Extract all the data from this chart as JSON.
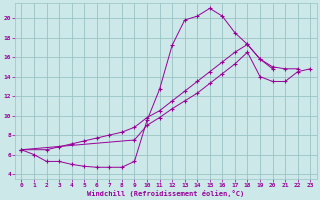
{
  "xlabel": "Windchill (Refroidissement éolien,°C)",
  "bg_color": "#cce8e8",
  "grid_color": "#99c4c4",
  "line_color": "#990099",
  "xlim": [
    -0.5,
    23.5
  ],
  "ylim": [
    3.5,
    21.5
  ],
  "xticks": [
    0,
    1,
    2,
    3,
    4,
    5,
    6,
    7,
    8,
    9,
    10,
    11,
    12,
    13,
    14,
    15,
    16,
    17,
    18,
    19,
    20,
    21,
    22,
    23
  ],
  "yticks": [
    4,
    6,
    8,
    10,
    12,
    14,
    16,
    18,
    20
  ],
  "curve1_x": [
    0,
    1,
    2,
    3,
    4,
    5,
    6,
    7,
    8,
    9,
    10,
    11,
    12,
    13,
    14,
    15,
    16,
    17,
    18,
    19,
    20,
    21,
    22
  ],
  "curve1_y": [
    6.5,
    6.0,
    5.3,
    5.3,
    5.0,
    4.8,
    4.7,
    4.7,
    4.7,
    5.3,
    9.5,
    12.7,
    17.2,
    19.8,
    20.2,
    21.0,
    20.2,
    18.5,
    17.3,
    15.8,
    15.0,
    14.8,
    14.8
  ],
  "curve2_x": [
    0,
    2,
    3,
    4,
    5,
    6,
    7,
    8,
    9,
    10,
    11,
    12,
    13,
    14,
    15,
    16,
    17,
    18,
    19,
    20
  ],
  "curve2_y": [
    6.5,
    6.5,
    6.8,
    7.1,
    7.4,
    7.7,
    8.0,
    8.3,
    8.8,
    9.8,
    10.5,
    11.5,
    12.5,
    13.5,
    14.5,
    15.5,
    16.5,
    17.3,
    15.8,
    14.8
  ],
  "curve3_x": [
    0,
    9,
    10,
    11,
    12,
    13,
    14,
    15,
    16,
    17,
    18,
    19,
    20,
    21,
    22,
    23
  ],
  "curve3_y": [
    6.5,
    7.5,
    9.0,
    9.8,
    10.7,
    11.5,
    12.3,
    13.3,
    14.3,
    15.3,
    16.5,
    14.0,
    13.5,
    13.5,
    14.5,
    14.8
  ]
}
